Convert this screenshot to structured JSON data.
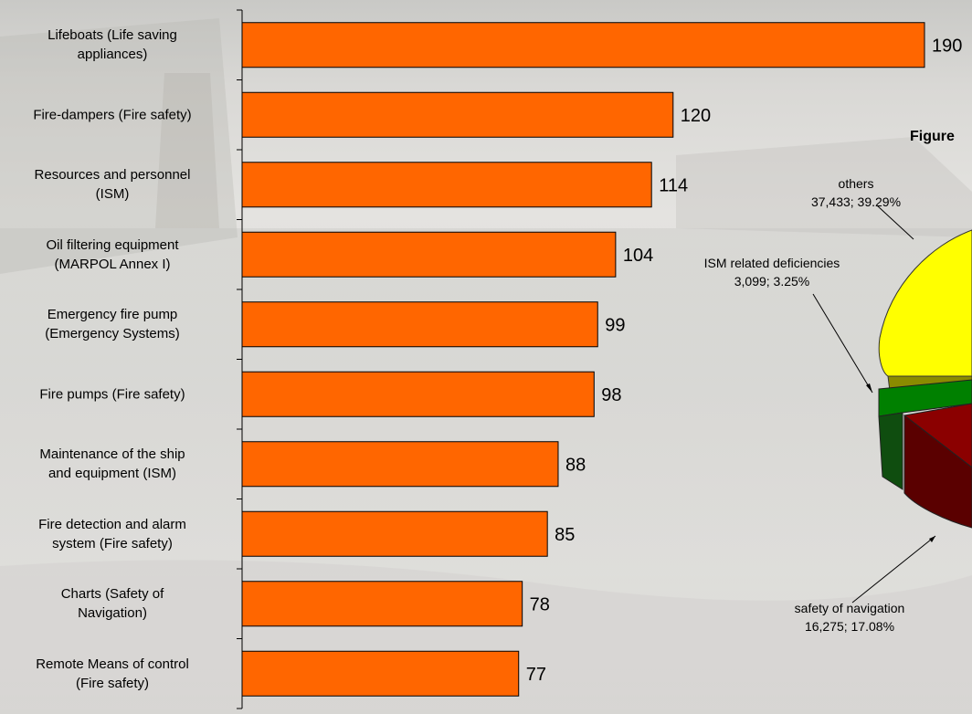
{
  "colors": {
    "bar_fill": "#ff6600",
    "bar_stroke": "#000000",
    "pie_yellow": "#ffff00",
    "pie_green": "#008000",
    "pie_red": "#8b0000"
  },
  "figure_title": "Figure",
  "chart_data": [
    {
      "type": "bar",
      "orientation": "horizontal",
      "categories": [
        "Lifeboats (Life saving appliances)",
        "Fire-dampers (Fire safety)",
        "Resources and personnel (ISM)",
        "Oil filtering equipment (MARPOL Annex I)",
        "Emergency fire pump (Emergency Systems)",
        "Fire pumps (Fire safety)",
        "Maintenance of the ship and equipment (ISM)",
        "Fire detection and alarm system (Fire safety)",
        "Charts (Safety of Navigation)",
        "Remote Means of control (Fire safety)"
      ],
      "category_lines": [
        [
          "Lifeboats (Life saving",
          "appliances)"
        ],
        [
          "Fire-dampers (Fire safety)",
          ""
        ],
        [
          "Resources and personnel",
          "(ISM)"
        ],
        [
          "Oil filtering equipment",
          "(MARPOL Annex I)"
        ],
        [
          "Emergency fire pump",
          "(Emergency Systems)"
        ],
        [
          "Fire pumps (Fire safety)",
          ""
        ],
        [
          "Maintenance of the ship",
          "and equipment (ISM)"
        ],
        [
          "Fire detection and alarm",
          "system (Fire safety)"
        ],
        [
          "Charts (Safety of",
          "Navigation)"
        ],
        [
          "Remote Means of control",
          "(Fire safety)"
        ]
      ],
      "values": [
        190,
        120,
        114,
        104,
        99,
        98,
        88,
        85,
        78,
        77
      ],
      "value_labels": [
        "190",
        "120",
        "114",
        "104",
        "99",
        "98",
        "88",
        "85",
        "78",
        "77"
      ],
      "xlim": [
        0,
        190
      ],
      "grid": false
    },
    {
      "type": "pie",
      "title": "Figure",
      "slices": [
        {
          "label": "others",
          "count": 37433,
          "count_text": "37,433",
          "percent": 39.29,
          "detail": "37,433; 39.29%"
        },
        {
          "label": "ISM related deficiencies",
          "count": 3099,
          "count_text": "3,099",
          "percent": 3.25,
          "detail": "3,099; 3.25%"
        },
        {
          "label": "safety of navigation",
          "count": 16275,
          "count_text": "16,275",
          "percent": 17.08,
          "detail": "16,275; 17.08%"
        }
      ]
    }
  ]
}
